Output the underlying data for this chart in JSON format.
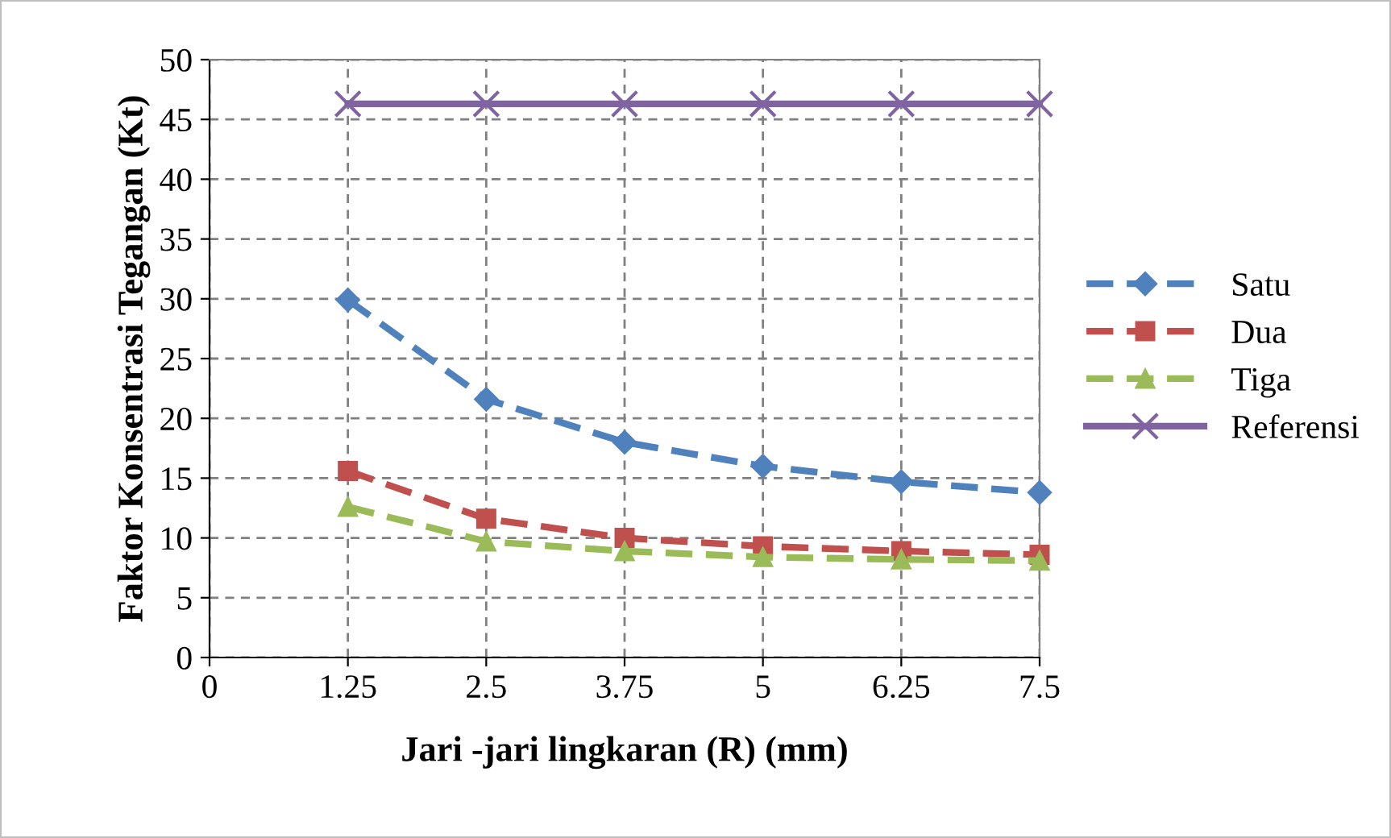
{
  "chart_data": {
    "type": "line",
    "xlabel": "Jari -jari lingkaran (R) (mm)",
    "ylabel": "Faktor Konsentrasi Tegangan (Kt)",
    "x": [
      1.25,
      2.5,
      3.75,
      5,
      6.25,
      7.5
    ],
    "series": [
      {
        "name": "Satu",
        "color": "#4f81bd",
        "marker": "diamond",
        "line_style": "dashed",
        "values": [
          29.9,
          21.6,
          18.0,
          16.0,
          14.7,
          13.8
        ]
      },
      {
        "name": "Dua",
        "color": "#c0504d",
        "marker": "square",
        "line_style": "dashed",
        "values": [
          15.6,
          11.6,
          10.0,
          9.3,
          8.9,
          8.6
        ]
      },
      {
        "name": "Tiga",
        "color": "#9bbb59",
        "marker": "triangle",
        "line_style": "dashed",
        "values": [
          12.6,
          9.7,
          8.9,
          8.4,
          8.2,
          8.1
        ]
      },
      {
        "name": "Referensi",
        "color": "#8064a2",
        "marker": "cross",
        "line_style": "solid",
        "values": [
          46.3,
          46.3,
          46.3,
          46.3,
          46.3,
          46.3
        ]
      }
    ],
    "xlim": [
      0,
      7.5
    ],
    "xticks": [
      0,
      1.25,
      2.5,
      3.75,
      5,
      6.25,
      7.5
    ],
    "ylim": [
      0,
      50
    ],
    "yticks": [
      0,
      5,
      10,
      15,
      20,
      25,
      30,
      35,
      40,
      45,
      50
    ],
    "grid": true,
    "legend": "right"
  }
}
